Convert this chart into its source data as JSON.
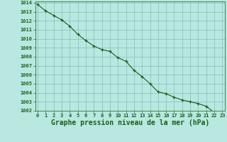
{
  "x": [
    0,
    1,
    2,
    3,
    4,
    5,
    6,
    7,
    8,
    9,
    10,
    11,
    12,
    13,
    14,
    15,
    16,
    17,
    18,
    19,
    20,
    21,
    22,
    23
  ],
  "y": [
    1013.8,
    1013.1,
    1012.6,
    1012.1,
    1011.4,
    1010.5,
    1009.8,
    1009.2,
    1008.8,
    1008.6,
    1007.9,
    1007.5,
    1006.5,
    1005.8,
    1005.0,
    1004.1,
    1003.9,
    1003.5,
    1003.2,
    1003.0,
    1002.8,
    1002.5,
    1001.8,
    1001.8
  ],
  "ylim": [
    1002,
    1014
  ],
  "xlim": [
    -0.3,
    23.3
  ],
  "yticks": [
    1002,
    1003,
    1004,
    1005,
    1006,
    1007,
    1008,
    1009,
    1010,
    1011,
    1012,
    1013,
    1014
  ],
  "xticks": [
    0,
    1,
    2,
    3,
    4,
    5,
    6,
    7,
    8,
    9,
    10,
    11,
    12,
    13,
    14,
    15,
    16,
    17,
    18,
    19,
    20,
    21,
    22,
    23
  ],
  "xlabel": "Graphe pression niveau de la mer (hPa)",
  "line_color": "#1a5e1a",
  "marker": "+",
  "marker_color": "#1a5e1a",
  "bg_color": "#b8e8e0",
  "grid_color": "#88bbbb",
  "tick_label_color": "#1a5e1a",
  "xlabel_color": "#1a5e1a",
  "tick_fontsize": 5.0,
  "xlabel_fontsize": 7.0
}
